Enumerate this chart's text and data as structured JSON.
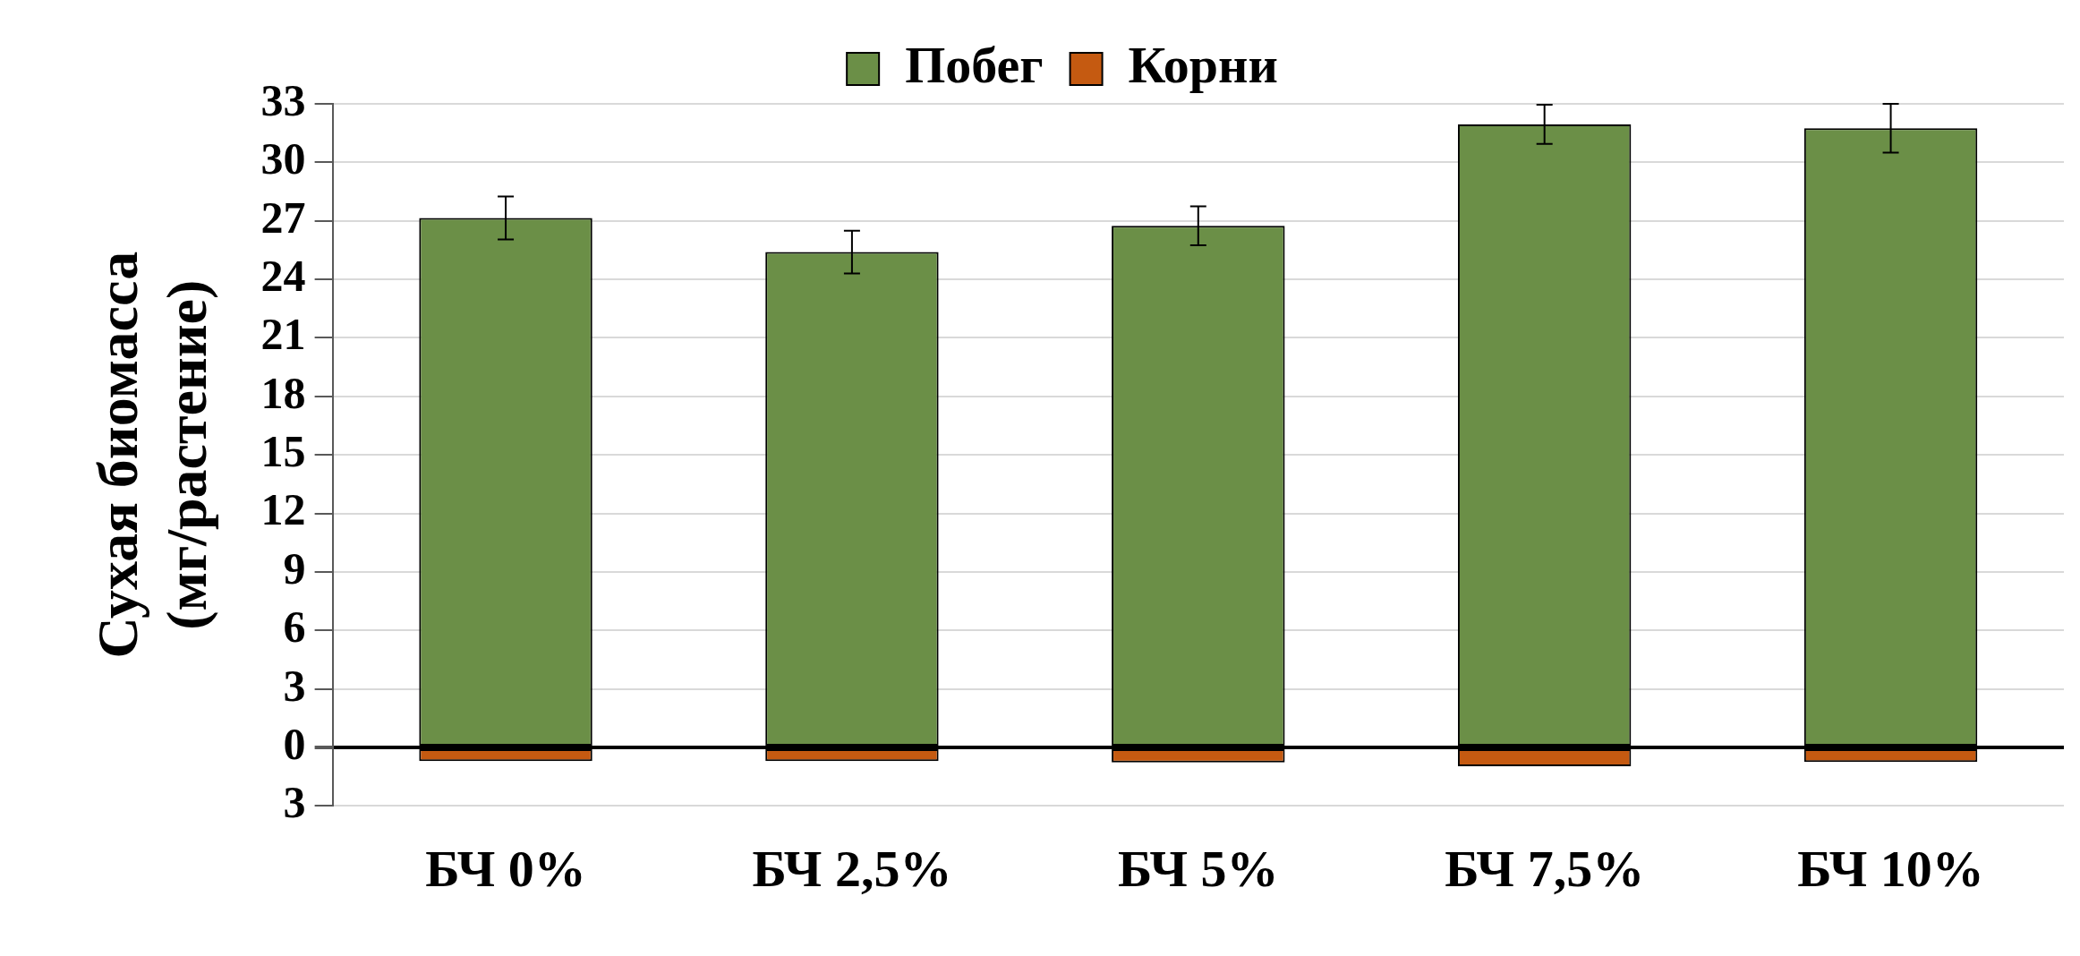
{
  "chart_data": {
    "type": "bar",
    "stacked": true,
    "ylabel": "Сухая биомасса\n(мг/растение)",
    "categories": [
      "БЧ 0%",
      "БЧ 2,5%",
      "БЧ 5%",
      "БЧ 7,5%",
      "БЧ 10%"
    ],
    "series": [
      {
        "name": "Побег",
        "color": "#6b8f47",
        "values": [
          27.15,
          25.4,
          26.75,
          31.95,
          31.75
        ],
        "errors": [
          1.1,
          1.1,
          1.0,
          1.0,
          1.25
        ]
      },
      {
        "name": "Корни",
        "color": "#c55a11",
        "values": [
          -0.7,
          -0.7,
          -0.77,
          -0.96,
          -0.74
        ]
      }
    ],
    "ylim": [
      -3,
      33
    ],
    "yticks": [
      {
        "value": -3,
        "label": "3"
      },
      0,
      3,
      6,
      9,
      12,
      15,
      18,
      21,
      24,
      27,
      30,
      33
    ],
    "grid": "y",
    "legend": "top"
  }
}
